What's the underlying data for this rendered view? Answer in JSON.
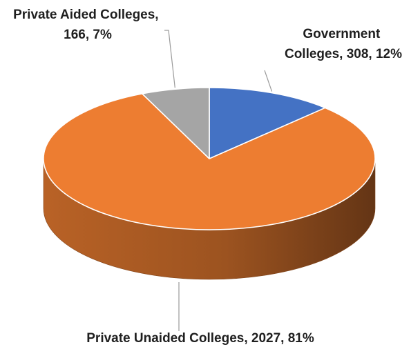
{
  "chart_data": {
    "type": "pie",
    "title": "",
    "categories": [
      "Government Colleges",
      "Private Unaided Colleges",
      "Private Aided Colleges"
    ],
    "values": [
      308,
      2027,
      166
    ],
    "percent": [
      "12%",
      "81%",
      "7%"
    ],
    "colors": [
      "#4472c4",
      "#ed7d31",
      "#a5a5a5"
    ],
    "style": "3d",
    "data_labels": [
      {
        "lines": [
          "Government",
          "Colleges, 308, 12%"
        ]
      },
      {
        "lines": [
          "Private Unaided Colleges, 2027, 81%"
        ]
      },
      {
        "lines": [
          "Private Aided Colleges,",
          "166, 7%"
        ]
      }
    ]
  }
}
